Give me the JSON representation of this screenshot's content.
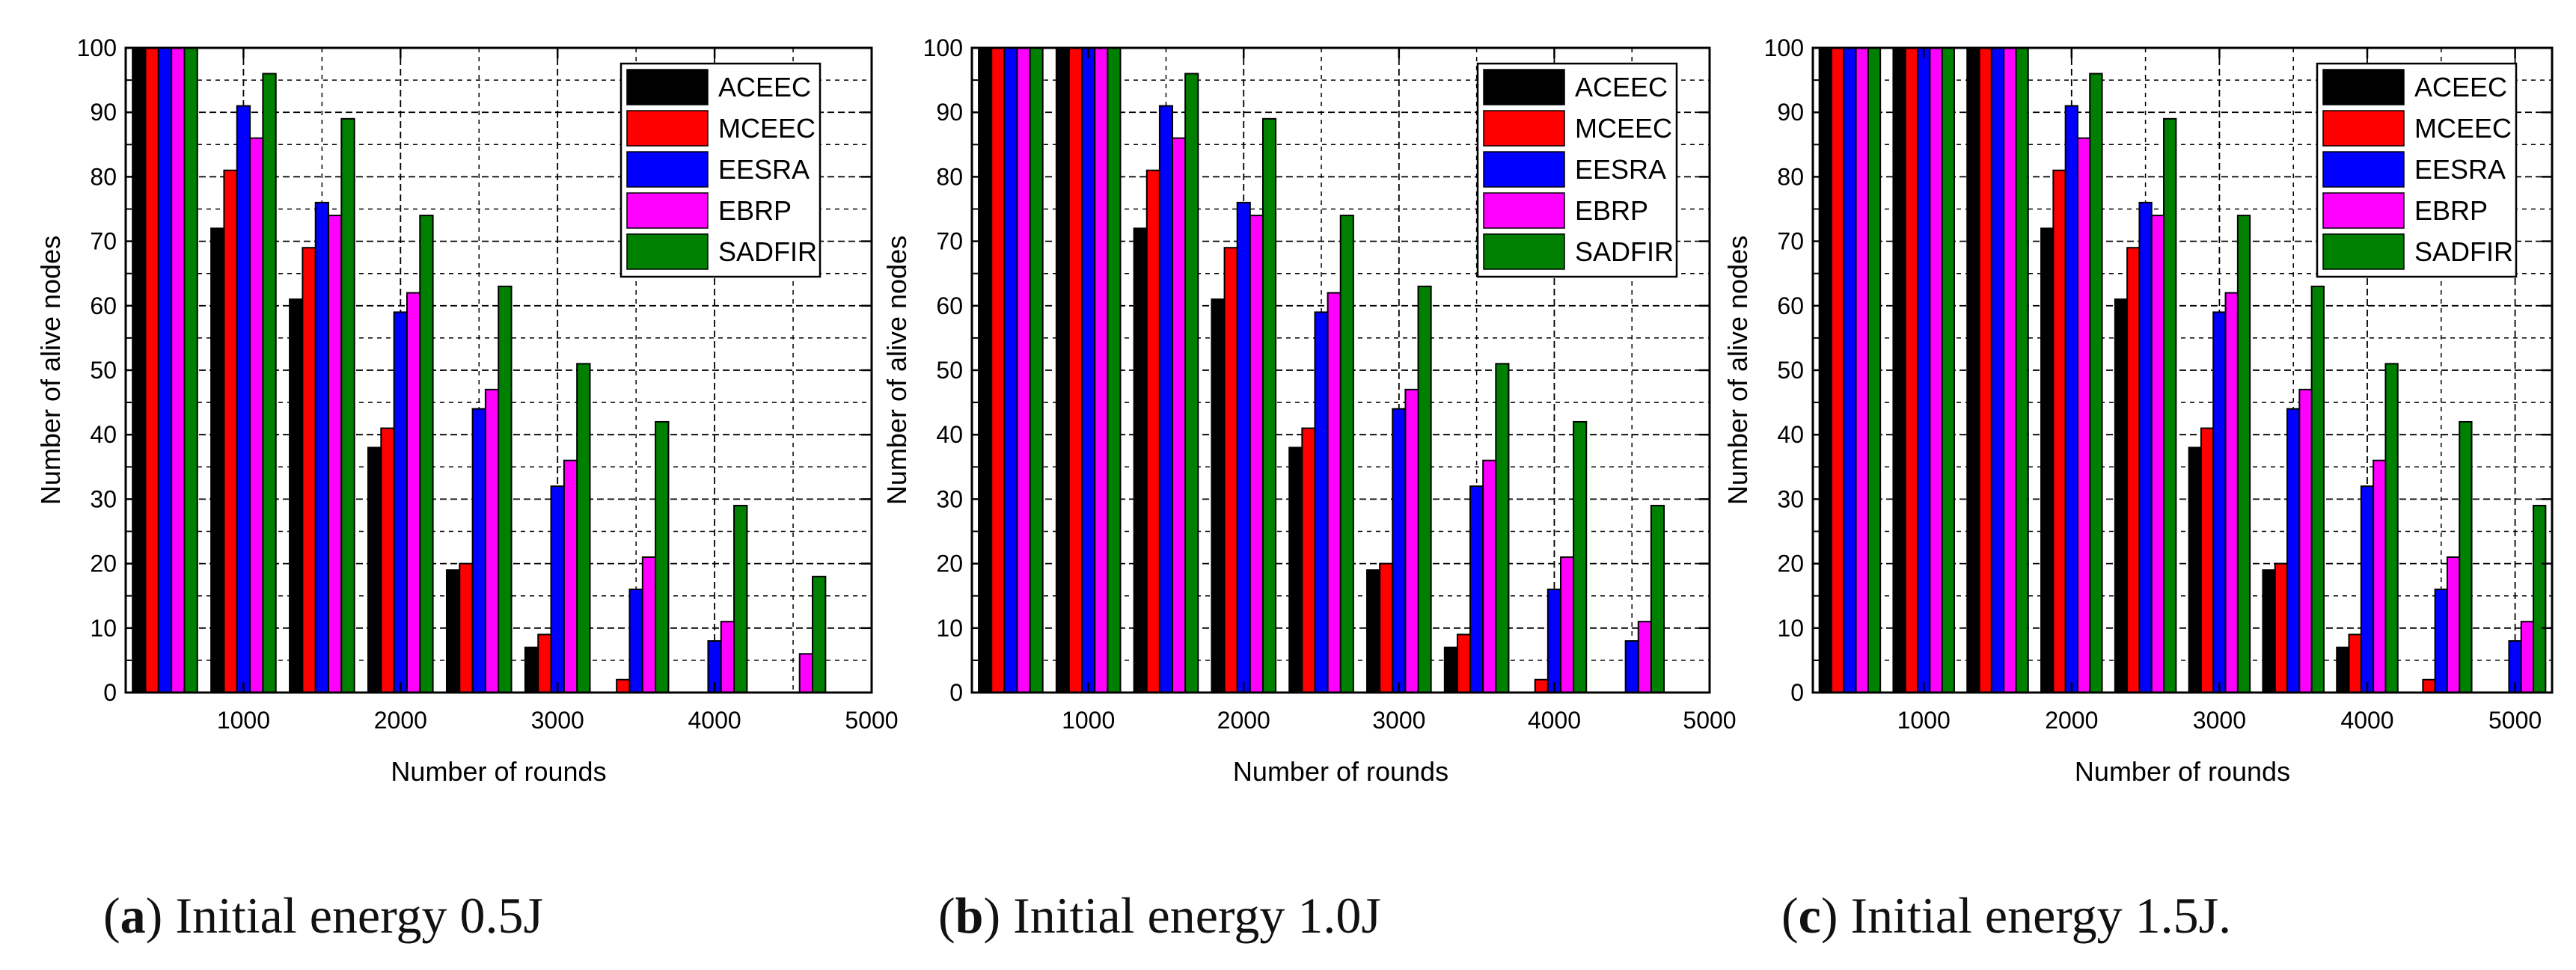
{
  "colors": {
    "ACEEC": "#000000",
    "MCEEC": "#ff0000",
    "EESRA": "#0000ff",
    "EBRP": "#ff00ff",
    "SADFIR": "#008000"
  },
  "chart_data": [
    {
      "type": "bar",
      "panel_letter": "a",
      "caption": "Initial energy 0.5J",
      "xlabel": "Number of rounds",
      "ylabel": "Number of alive nodes",
      "xlim": [
        250,
        5000
      ],
      "ylim": [
        0,
        100
      ],
      "x_ticks": [
        1000,
        2000,
        3000,
        4000,
        5000
      ],
      "y_ticks": [
        0,
        10,
        20,
        30,
        40,
        50,
        60,
        70,
        80,
        90,
        100
      ],
      "legend_position": "top-right",
      "x": [
        500,
        1000,
        1500,
        2000,
        2500,
        3000,
        3500,
        4000,
        4500
      ],
      "series": [
        {
          "name": "ACEEC",
          "values": [
            100,
            72,
            61,
            38,
            19,
            7,
            0,
            0,
            0
          ]
        },
        {
          "name": "MCEEC",
          "values": [
            100,
            81,
            69,
            41,
            20,
            9,
            2,
            0,
            0
          ]
        },
        {
          "name": "EESRA",
          "values": [
            100,
            91,
            76,
            59,
            44,
            32,
            16,
            8,
            0
          ]
        },
        {
          "name": "EBRP",
          "values": [
            100,
            86,
            74,
            62,
            47,
            36,
            21,
            11,
            6
          ]
        },
        {
          "name": "SADFIR",
          "values": [
            100,
            96,
            89,
            74,
            63,
            51,
            42,
            29,
            18
          ]
        }
      ]
    },
    {
      "type": "bar",
      "panel_letter": "b",
      "caption": "Initial energy 1.0J",
      "xlabel": "Number of rounds",
      "ylabel": "Number of alive nodes",
      "xlim": [
        250,
        5000
      ],
      "ylim": [
        0,
        100
      ],
      "x_ticks": [
        1000,
        2000,
        3000,
        4000,
        5000
      ],
      "y_ticks": [
        0,
        10,
        20,
        30,
        40,
        50,
        60,
        70,
        80,
        90,
        100
      ],
      "legend_position": "top-right",
      "x": [
        500,
        1000,
        1500,
        2000,
        2500,
        3000,
        3500,
        4000,
        4500
      ],
      "series": [
        {
          "name": "ACEEC",
          "values": [
            100,
            100,
            72,
            61,
            38,
            19,
            7,
            0,
            0
          ]
        },
        {
          "name": "MCEEC",
          "values": [
            100,
            100,
            81,
            69,
            41,
            20,
            9,
            2,
            0
          ]
        },
        {
          "name": "EESRA",
          "values": [
            100,
            100,
            91,
            76,
            59,
            44,
            32,
            16,
            8
          ]
        },
        {
          "name": "EBRP",
          "values": [
            100,
            100,
            86,
            74,
            62,
            47,
            36,
            21,
            11
          ]
        },
        {
          "name": "SADFIR",
          "values": [
            100,
            100,
            96,
            89,
            74,
            63,
            51,
            42,
            29
          ]
        }
      ]
    },
    {
      "type": "bar",
      "panel_letter": "c",
      "caption": "Initial energy 1.5J.",
      "xlabel": "Number of rounds",
      "ylabel": "Number of alive nodes",
      "xlim": [
        250,
        5250
      ],
      "ylim": [
        0,
        100
      ],
      "x_ticks": [
        1000,
        2000,
        3000,
        4000,
        5000
      ],
      "y_ticks": [
        0,
        10,
        20,
        30,
        40,
        50,
        60,
        70,
        80,
        90,
        100
      ],
      "legend_position": "top-right",
      "x": [
        500,
        1000,
        1500,
        2000,
        2500,
        3000,
        3500,
        4000,
        4500,
        5000
      ],
      "series": [
        {
          "name": "ACEEC",
          "values": [
            100,
            100,
            100,
            72,
            61,
            38,
            19,
            7,
            0,
            0
          ]
        },
        {
          "name": "MCEEC",
          "values": [
            100,
            100,
            100,
            81,
            69,
            41,
            20,
            9,
            2,
            0
          ]
        },
        {
          "name": "EESRA",
          "values": [
            100,
            100,
            100,
            91,
            76,
            59,
            44,
            32,
            16,
            8
          ]
        },
        {
          "name": "EBRP",
          "values": [
            100,
            100,
            100,
            86,
            74,
            62,
            47,
            36,
            21,
            11
          ]
        },
        {
          "name": "SADFIR",
          "values": [
            100,
            100,
            100,
            96,
            89,
            74,
            63,
            51,
            42,
            29
          ]
        }
      ]
    }
  ]
}
